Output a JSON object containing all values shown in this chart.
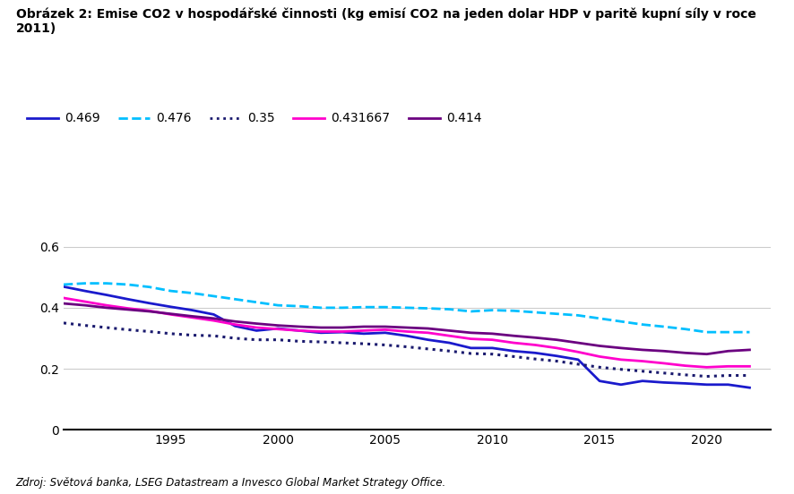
{
  "title_line1": "Obrázek 2: Emise CO2 v hospodářské činnosti (kg emisí CO2 na jeden dolar HDP v paritě kupní síly v roce",
  "title_line2": "2011)",
  "footnote": "Zdroj: Světová banka, LSEG Datastream a Invesco Global Market Strategy Office.",
  "ylim": [
    0,
    0.68
  ],
  "yticks": [
    0,
    0.2,
    0.4,
    0.6
  ],
  "xlim": [
    1990,
    2023
  ],
  "xticks": [
    1995,
    2000,
    2005,
    2010,
    2015,
    2020
  ],
  "series": [
    {
      "label": "0.469",
      "color": "#1a1acc",
      "linestyle": "solid",
      "linewidth": 2.0,
      "data": {
        "years": [
          1990,
          1991,
          1992,
          1993,
          1994,
          1995,
          1996,
          1997,
          1998,
          1999,
          2000,
          2001,
          2002,
          2003,
          2004,
          2005,
          2006,
          2007,
          2008,
          2009,
          2010,
          2011,
          2012,
          2013,
          2014,
          2015,
          2016,
          2017,
          2018,
          2019,
          2020,
          2021,
          2022
        ],
        "values": [
          0.469,
          0.455,
          0.442,
          0.428,
          0.415,
          0.403,
          0.392,
          0.378,
          0.34,
          0.325,
          0.332,
          0.325,
          0.318,
          0.32,
          0.315,
          0.318,
          0.308,
          0.295,
          0.285,
          0.268,
          0.268,
          0.258,
          0.252,
          0.242,
          0.23,
          0.16,
          0.148,
          0.16,
          0.155,
          0.152,
          0.148,
          0.148,
          0.138
        ]
      }
    },
    {
      "label": "0.476",
      "color": "#00bfff",
      "linestyle": "dashed",
      "linewidth": 2.0,
      "data": {
        "years": [
          1990,
          1991,
          1992,
          1993,
          1994,
          1995,
          1996,
          1997,
          1998,
          1999,
          2000,
          2001,
          2002,
          2003,
          2004,
          2005,
          2006,
          2007,
          2008,
          2009,
          2010,
          2011,
          2012,
          2013,
          2014,
          2015,
          2016,
          2017,
          2018,
          2019,
          2020,
          2021,
          2022
        ],
        "values": [
          0.476,
          0.48,
          0.48,
          0.476,
          0.468,
          0.455,
          0.448,
          0.438,
          0.428,
          0.418,
          0.408,
          0.405,
          0.4,
          0.4,
          0.402,
          0.402,
          0.4,
          0.398,
          0.395,
          0.388,
          0.392,
          0.39,
          0.385,
          0.38,
          0.375,
          0.365,
          0.355,
          0.345,
          0.338,
          0.33,
          0.32,
          0.32,
          0.32
        ]
      }
    },
    {
      "label": "0.35",
      "color": "#1a1a6e",
      "linestyle": "dotted",
      "linewidth": 2.2,
      "data": {
        "years": [
          1990,
          1991,
          1992,
          1993,
          1994,
          1995,
          1996,
          1997,
          1998,
          1999,
          2000,
          2001,
          2002,
          2003,
          2004,
          2005,
          2006,
          2007,
          2008,
          2009,
          2010,
          2011,
          2012,
          2013,
          2014,
          2015,
          2016,
          2017,
          2018,
          2019,
          2020,
          2021,
          2022
        ],
        "values": [
          0.35,
          0.342,
          0.335,
          0.328,
          0.322,
          0.315,
          0.31,
          0.308,
          0.3,
          0.295,
          0.295,
          0.29,
          0.288,
          0.285,
          0.282,
          0.278,
          0.272,
          0.265,
          0.258,
          0.25,
          0.248,
          0.24,
          0.232,
          0.225,
          0.215,
          0.205,
          0.198,
          0.192,
          0.186,
          0.18,
          0.175,
          0.178,
          0.178
        ]
      }
    },
    {
      "label": "0.431667",
      "color": "#ff00cc",
      "linestyle": "solid",
      "linewidth": 2.0,
      "data": {
        "years": [
          1990,
          1991,
          1992,
          1993,
          1994,
          1995,
          1996,
          1997,
          1998,
          1999,
          2000,
          2001,
          2002,
          2003,
          2004,
          2005,
          2006,
          2007,
          2008,
          2009,
          2010,
          2011,
          2012,
          2013,
          2014,
          2015,
          2016,
          2017,
          2018,
          2019,
          2020,
          2021,
          2022
        ],
        "values": [
          0.432,
          0.42,
          0.408,
          0.398,
          0.39,
          0.378,
          0.368,
          0.358,
          0.345,
          0.335,
          0.33,
          0.325,
          0.322,
          0.322,
          0.325,
          0.328,
          0.322,
          0.318,
          0.308,
          0.298,
          0.295,
          0.285,
          0.278,
          0.268,
          0.255,
          0.24,
          0.23,
          0.225,
          0.218,
          0.21,
          0.205,
          0.208,
          0.208
        ]
      }
    },
    {
      "label": "0.414",
      "color": "#6b0080",
      "linestyle": "solid",
      "linewidth": 2.0,
      "data": {
        "years": [
          1990,
          1991,
          1992,
          1993,
          1994,
          1995,
          1996,
          1997,
          1998,
          1999,
          2000,
          2001,
          2002,
          2003,
          2004,
          2005,
          2006,
          2007,
          2008,
          2009,
          2010,
          2011,
          2012,
          2013,
          2014,
          2015,
          2016,
          2017,
          2018,
          2019,
          2020,
          2021,
          2022
        ],
        "values": [
          0.414,
          0.408,
          0.4,
          0.394,
          0.388,
          0.38,
          0.372,
          0.365,
          0.355,
          0.348,
          0.342,
          0.338,
          0.335,
          0.335,
          0.338,
          0.338,
          0.335,
          0.332,
          0.325,
          0.318,
          0.315,
          0.308,
          0.302,
          0.295,
          0.285,
          0.275,
          0.268,
          0.262,
          0.258,
          0.252,
          0.248,
          0.258,
          0.262
        ]
      }
    }
  ],
  "background_color": "#ffffff",
  "grid_color": "#cccccc"
}
